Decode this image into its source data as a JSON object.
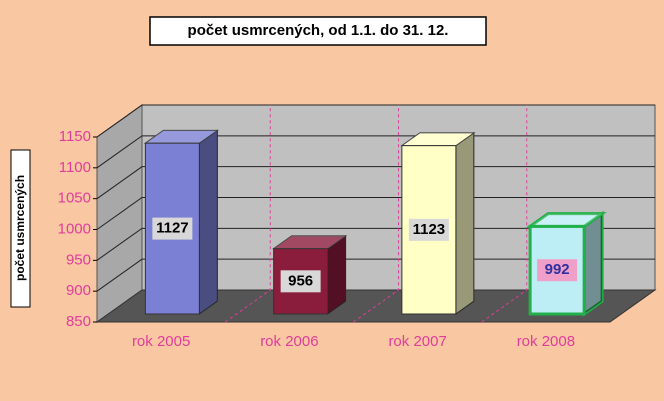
{
  "chart_data": {
    "type": "bar3d",
    "title": "počet usmrcených, od 1.1.  do 31. 12.",
    "y_label": "počet usmrcených",
    "categories": [
      "rok 2005",
      "rok 2006",
      "rok 2007",
      "rok 2008"
    ],
    "values": [
      1127,
      956,
      1123,
      992
    ],
    "colors": [
      "#7c80d4",
      "#8a1c3c",
      "#ffffc6",
      "#bdeef6"
    ],
    "edge_colors": [
      "#333333",
      "#333333",
      "#333333",
      "#22b04a"
    ],
    "ylim": [
      850,
      1150
    ],
    "yticks": [
      850,
      900,
      950,
      1000,
      1050,
      1100,
      1150
    ],
    "grid": true
  }
}
